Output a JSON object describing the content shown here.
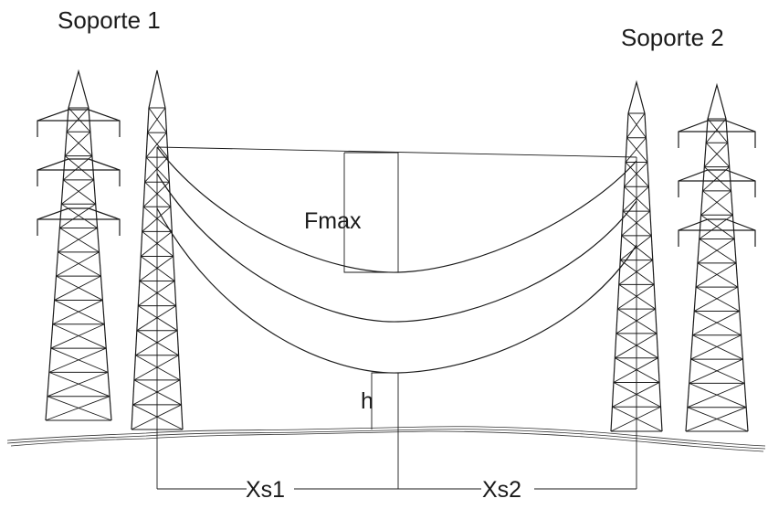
{
  "labels": {
    "support_1": "Soporte 1",
    "support_2": "Soporte 2",
    "sag": "Fmax",
    "clearance": "h",
    "span_1": "Xs1",
    "span_2": "Xs2"
  },
  "colors": {
    "line": "#1a1a1a",
    "background": "#ffffff"
  }
}
